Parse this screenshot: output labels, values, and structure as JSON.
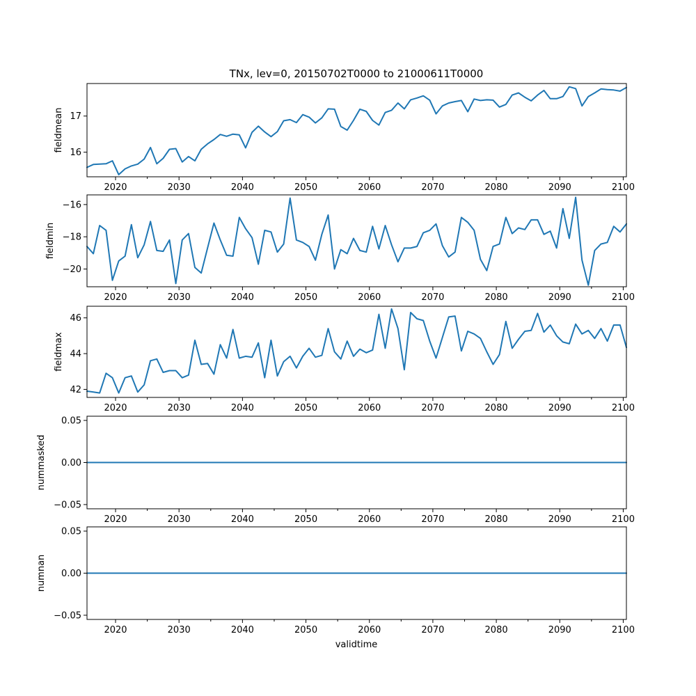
{
  "figure": {
    "title": "TNx, lev=0, 20150702T0000 to 21000611T0000",
    "xlabel": "validtime",
    "line_color": "#1f77b4"
  },
  "chart_data": [
    {
      "type": "line",
      "ylabel": "fieldmean",
      "xlim": [
        2015.5,
        2100.5
      ],
      "ylim": [
        15.32,
        17.9
      ],
      "yticks": [
        16,
        17
      ],
      "ytick_labels": [
        "16",
        "17"
      ],
      "xticks": [
        2020,
        2030,
        2040,
        2050,
        2060,
        2070,
        2080,
        2090,
        2100
      ],
      "xtick_labels": [
        "2020",
        "2030",
        "2040",
        "2050",
        "2060",
        "2070",
        "2080",
        "2090",
        "2100"
      ],
      "x_start": 2015.5,
      "values": [
        15.58,
        15.66,
        15.67,
        15.68,
        15.76,
        15.38,
        15.54,
        15.62,
        15.67,
        15.81,
        16.13,
        15.68,
        15.83,
        16.08,
        16.1,
        15.73,
        15.88,
        15.76,
        16.08,
        16.23,
        16.35,
        16.49,
        16.44,
        16.5,
        16.48,
        16.12,
        16.55,
        16.72,
        16.56,
        16.43,
        16.57,
        16.87,
        16.9,
        16.82,
        17.04,
        16.97,
        16.81,
        16.95,
        17.2,
        17.19,
        16.71,
        16.61,
        16.88,
        17.19,
        17.13,
        16.88,
        16.75,
        17.1,
        17.16,
        17.36,
        17.2,
        17.45,
        17.5,
        17.56,
        17.44,
        17.06,
        17.28,
        17.36,
        17.4,
        17.43,
        17.12,
        17.47,
        17.43,
        17.45,
        17.44,
        17.25,
        17.32,
        17.58,
        17.64,
        17.52,
        17.42,
        17.58,
        17.71,
        17.48,
        17.48,
        17.54,
        17.81,
        17.76,
        17.28,
        17.54,
        17.64,
        17.75,
        17.73,
        17.72,
        17.69,
        17.79
      ]
    },
    {
      "type": "line",
      "ylabel": "fieldmin",
      "xlim": [
        2015.5,
        2100.5
      ],
      "ylim": [
        -21.1,
        -15.4
      ],
      "yticks": [
        -20,
        -18,
        -16
      ],
      "ytick_labels": [
        "−20",
        "−18",
        "−16"
      ],
      "xticks": [
        2020,
        2030,
        2040,
        2050,
        2060,
        2070,
        2080,
        2090,
        2100
      ],
      "xtick_labels": [
        "2020",
        "2030",
        "2040",
        "2050",
        "2060",
        "2070",
        "2080",
        "2090",
        "2100"
      ],
      "x_start": 2015.5,
      "values": [
        -18.6,
        -19.05,
        -17.3,
        -17.6,
        -20.7,
        -19.5,
        -19.2,
        -17.25,
        -19.3,
        -18.5,
        -17.05,
        -18.85,
        -18.9,
        -18.2,
        -20.9,
        -18.2,
        -17.8,
        -19.9,
        -20.25,
        -18.7,
        -17.15,
        -18.2,
        -19.15,
        -19.2,
        -16.8,
        -17.5,
        -18.05,
        -19.7,
        -17.6,
        -17.7,
        -18.95,
        -18.45,
        -15.6,
        -18.2,
        -18.35,
        -18.6,
        -19.45,
        -17.85,
        -16.65,
        -20.0,
        -18.8,
        -19.05,
        -18.1,
        -18.85,
        -18.95,
        -17.35,
        -18.75,
        -17.3,
        -18.5,
        -19.55,
        -18.7,
        -18.7,
        -18.6,
        -17.75,
        -17.6,
        -17.2,
        -18.55,
        -19.25,
        -18.95,
        -16.8,
        -17.1,
        -17.6,
        -19.4,
        -20.1,
        -18.6,
        -18.45,
        -16.8,
        -17.8,
        -17.45,
        -17.55,
        -16.95,
        -16.95,
        -17.85,
        -17.65,
        -18.7,
        -16.25,
        -18.1,
        -15.55,
        -19.45,
        -21.0,
        -18.85,
        -18.45,
        -18.35,
        -17.35,
        -17.7,
        -17.2
      ]
    },
    {
      "type": "line",
      "ylabel": "fieldmax",
      "xlim": [
        2015.5,
        2100.5
      ],
      "ylim": [
        41.55,
        46.65
      ],
      "yticks": [
        42,
        44,
        46
      ],
      "ytick_labels": [
        "42",
        "44",
        "46"
      ],
      "xticks": [
        2020,
        2030,
        2040,
        2050,
        2060,
        2070,
        2080,
        2090,
        2100
      ],
      "xtick_labels": [
        "2020",
        "2030",
        "2040",
        "2050",
        "2060",
        "2070",
        "2080",
        "2090",
        "2100"
      ],
      "x_start": 2015.5,
      "values": [
        41.9,
        41.85,
        41.8,
        42.9,
        42.65,
        41.8,
        42.65,
        42.75,
        41.85,
        42.25,
        43.6,
        43.7,
        42.95,
        43.05,
        43.05,
        42.65,
        42.8,
        44.75,
        43.4,
        43.45,
        42.85,
        44.5,
        43.75,
        45.35,
        43.75,
        43.85,
        43.8,
        44.6,
        42.65,
        44.75,
        42.75,
        43.55,
        43.85,
        43.2,
        43.85,
        44.3,
        43.8,
        43.9,
        45.4,
        44.1,
        43.7,
        44.7,
        43.85,
        44.25,
        44.05,
        44.2,
        46.2,
        44.3,
        46.5,
        45.4,
        43.1,
        46.3,
        45.95,
        45.85,
        44.7,
        43.75,
        44.9,
        46.05,
        46.1,
        44.15,
        45.25,
        45.1,
        44.85,
        44.1,
        43.4,
        43.95,
        45.8,
        44.3,
        44.8,
        45.25,
        45.3,
        46.25,
        45.2,
        45.6,
        45.0,
        44.65,
        44.55,
        45.65,
        45.1,
        45.3,
        44.85,
        45.4,
        44.7,
        45.6,
        45.6,
        44.35
      ]
    },
    {
      "type": "line",
      "ylabel": "nummasked",
      "xlim": [
        2015.5,
        2100.5
      ],
      "ylim": [
        -0.055,
        0.055
      ],
      "yticks": [
        -0.05,
        0.0,
        0.05
      ],
      "ytick_labels": [
        "−0.05",
        "0.00",
        "0.05"
      ],
      "xticks": [
        2020,
        2030,
        2040,
        2050,
        2060,
        2070,
        2080,
        2090,
        2100
      ],
      "xtick_labels": [
        "2020",
        "2030",
        "2040",
        "2050",
        "2060",
        "2070",
        "2080",
        "2090",
        "2100"
      ],
      "x_start": 2015.5,
      "values": [
        0,
        0
      ]
    },
    {
      "type": "line",
      "ylabel": "numnan",
      "xlim": [
        2015.5,
        2100.5
      ],
      "ylim": [
        -0.055,
        0.055
      ],
      "yticks": [
        -0.05,
        0.0,
        0.05
      ],
      "ytick_labels": [
        "−0.05",
        "0.00",
        "0.05"
      ],
      "xticks": [
        2020,
        2030,
        2040,
        2050,
        2060,
        2070,
        2080,
        2090,
        2100
      ],
      "xtick_labels": [
        "2020",
        "2030",
        "2040",
        "2050",
        "2060",
        "2070",
        "2080",
        "2090",
        "2100"
      ],
      "x_start": 2015.5,
      "values": [
        0,
        0
      ]
    }
  ]
}
